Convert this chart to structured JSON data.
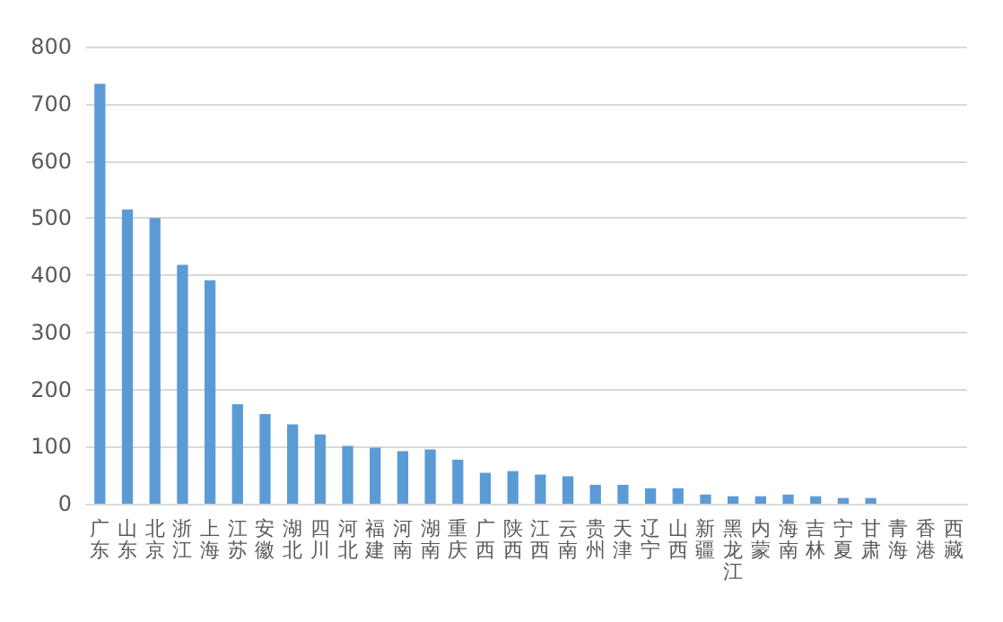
{
  "chart_data": {
    "type": "bar",
    "categories": [
      "广东",
      "山东",
      "北京",
      "浙江",
      "上海",
      "江苏",
      "安徽",
      "湖北",
      "四川",
      "河北",
      "福建",
      "河南",
      "湖南",
      "重庆",
      "广西",
      "陕西",
      "江西",
      "云南",
      "贵州",
      "天津",
      "辽宁",
      "山西",
      "新疆",
      "黑龙江",
      "内蒙",
      "海南",
      "吉林",
      "宁夏",
      "甘肃",
      "青海",
      "香港",
      "西藏"
    ],
    "values": [
      735,
      515,
      500,
      418,
      391,
      174,
      157,
      139,
      121,
      101,
      98,
      92,
      95,
      77,
      54,
      57,
      51,
      48,
      33,
      33,
      27,
      27,
      16,
      13,
      13,
      16,
      13,
      10,
      10,
      0,
      0,
      0
    ],
    "color": "#5b9bd5",
    "ylim": [
      0,
      800
    ],
    "yticks": [
      0,
      100,
      200,
      300,
      400,
      500,
      600,
      700,
      800
    ],
    "grid": "y"
  }
}
